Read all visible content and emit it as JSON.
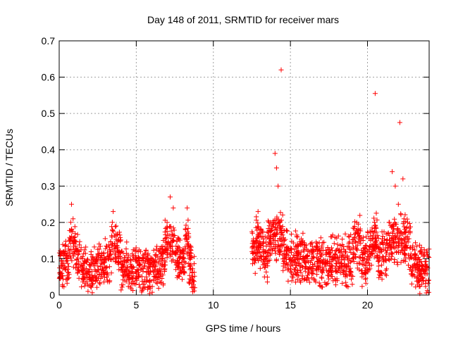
{
  "chart_data": {
    "type": "scatter",
    "title": "Day 148 of 2011, SRMTID for receiver mars",
    "xlabel": "GPS time / hours",
    "ylabel": "SRMTID / TECUs",
    "xlim": [
      0,
      24
    ],
    "ylim": [
      0,
      0.7
    ],
    "xticks": [
      0,
      5,
      10,
      15,
      20
    ],
    "xtick_labels": [
      "0",
      "5",
      "10",
      "15",
      "20"
    ],
    "yticks": [
      0,
      0.1,
      0.2,
      0.3,
      0.4,
      0.5,
      0.6,
      0.7
    ],
    "ytick_labels": [
      "0",
      "0.1",
      "0.2",
      "0.3",
      "0.4",
      "0.5",
      "0.6",
      "0.7"
    ],
    "grid": true,
    "marker": "+",
    "marker_color": "#ff0000",
    "series": [
      {
        "name": "SRMTID",
        "segments": [
          {
            "x_start": 0.0,
            "x_end": 8.8,
            "baseline": 0.08,
            "spread": 0.045,
            "count": 900
          },
          {
            "x_start": 12.5,
            "x_end": 24.0,
            "baseline": 0.09,
            "spread": 0.05,
            "count": 1200
          }
        ],
        "x": [
          0.1,
          0.5,
          0.8,
          0.9,
          1.2,
          1.5,
          2.0,
          2.5,
          3.0,
          3.3,
          3.5,
          3.7,
          3.8,
          4.2,
          4.8,
          5.3,
          5.8,
          6.2,
          6.7,
          7.0,
          7.2,
          7.4,
          7.6,
          8.0,
          8.3,
          8.5,
          8.7,
          12.6,
          12.9,
          13.1,
          13.4,
          13.7,
          14.0,
          14.1,
          14.2,
          14.3,
          14.4,
          14.6,
          15.0,
          15.4,
          15.8,
          16.3,
          16.8,
          17.3,
          17.8,
          18.3,
          18.8,
          19.3,
          19.8,
          20.2,
          20.5,
          20.8,
          21.1,
          21.4,
          21.6,
          21.8,
          22.0,
          22.1,
          22.3,
          22.6,
          23.0,
          23.4,
          23.8
        ],
        "y": [
          0.08,
          0.1,
          0.25,
          0.21,
          0.12,
          0.08,
          0.05,
          0.08,
          0.1,
          0.12,
          0.23,
          0.19,
          0.15,
          0.08,
          0.06,
          0.07,
          0.06,
          0.07,
          0.1,
          0.2,
          0.27,
          0.24,
          0.12,
          0.1,
          0.24,
          0.07,
          0.02,
          0.15,
          0.23,
          0.18,
          0.12,
          0.2,
          0.39,
          0.35,
          0.3,
          0.2,
          0.62,
          0.15,
          0.1,
          0.12,
          0.1,
          0.09,
          0.1,
          0.08,
          0.1,
          0.12,
          0.1,
          0.2,
          0.1,
          0.15,
          0.555,
          0.12,
          0.15,
          0.2,
          0.34,
          0.3,
          0.25,
          0.475,
          0.32,
          0.2,
          0.1,
          0.06,
          0.04
        ]
      }
    ]
  }
}
